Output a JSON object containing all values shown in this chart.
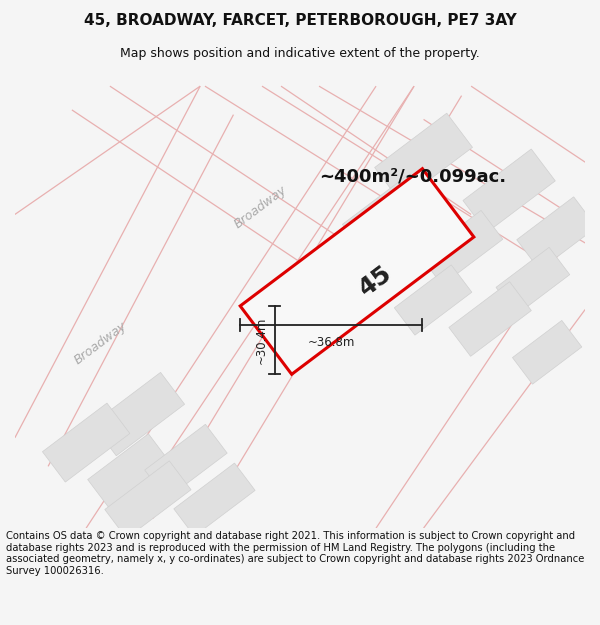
{
  "title": "45, BROADWAY, FARCET, PETERBOROUGH, PE7 3AY",
  "subtitle": "Map shows position and indicative extent of the property.",
  "footer": "Contains OS data © Crown copyright and database right 2021. This information is subject to Crown copyright and database rights 2023 and is reproduced with the permission of HM Land Registry. The polygons (including the associated geometry, namely x, y co-ordinates) are subject to Crown copyright and database rights 2023 Ordnance Survey 100026316.",
  "area_label": "~400m²/~0.099ac.",
  "plot_number": "45",
  "dim_height": "~30.4m",
  "dim_width": "~36.8m",
  "street_name": "Broadway",
  "bg_color": "#f5f5f5",
  "map_bg": "#ffffff",
  "road_line_color": "#e8b0b0",
  "road_fill_color": "#ececec",
  "building_fill": "#e0e0e0",
  "building_edge": "#d0d0d0",
  "plot_edge_color": "#dd0000",
  "plot_fill": "#f8f8f8",
  "dim_line_color": "#222222",
  "road_ang": 37,
  "title_fontsize": 11,
  "subtitle_fontsize": 9,
  "footer_fontsize": 7.2,
  "area_fontsize": 13,
  "plot_label_fontsize": 18,
  "street_fontsize": 9
}
